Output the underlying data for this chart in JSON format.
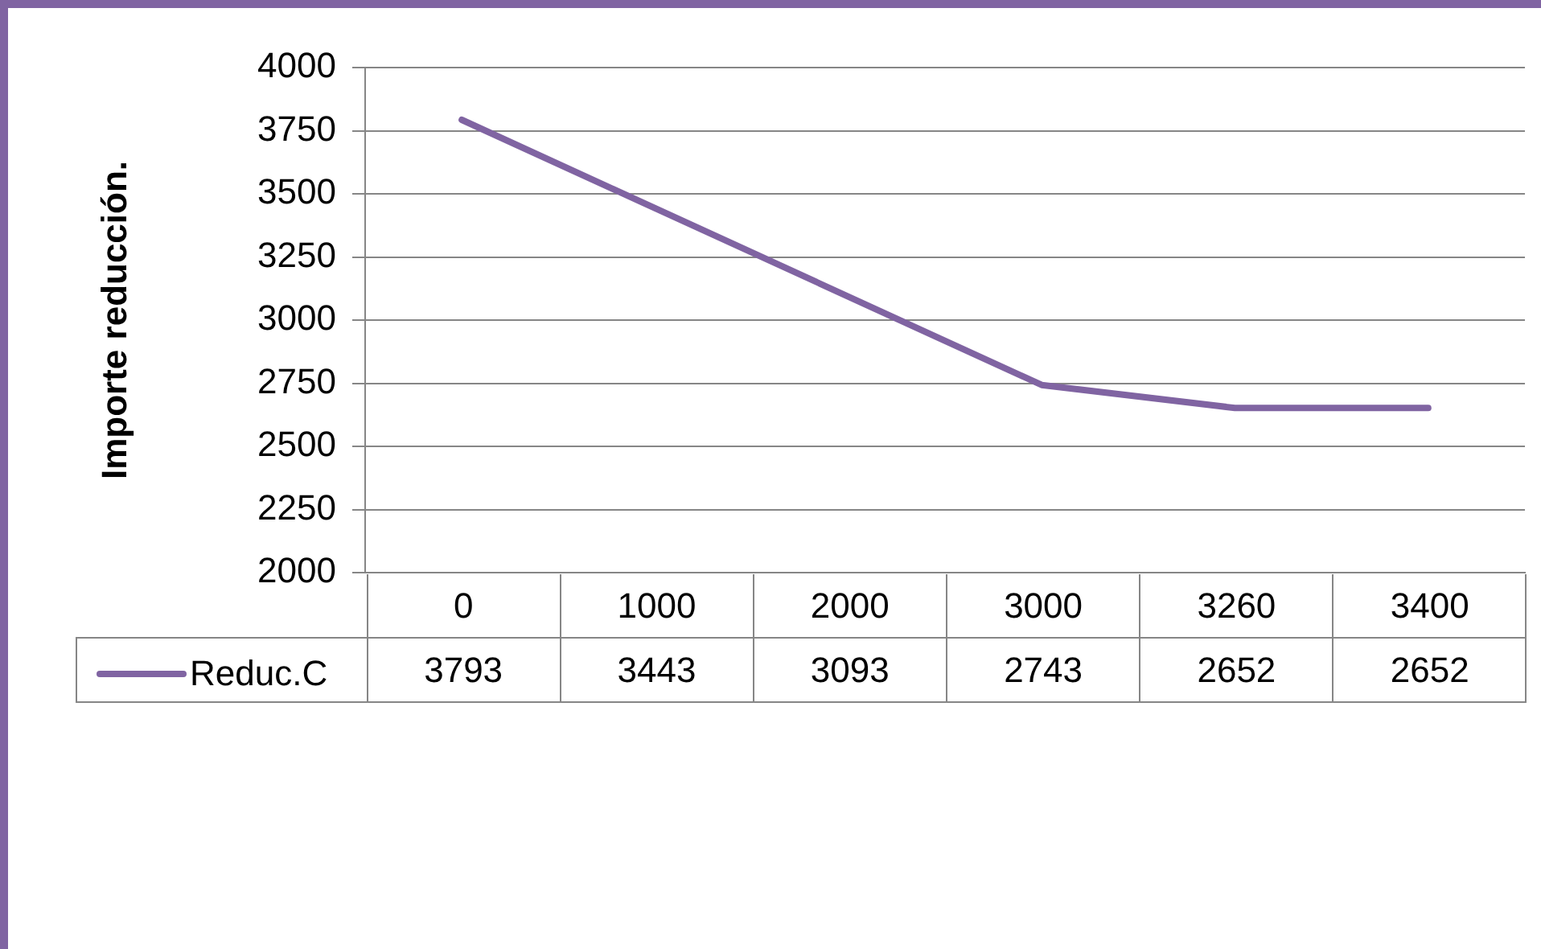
{
  "chart_data": {
    "type": "line",
    "ylabel": "Importe reducción.",
    "categories": [
      "0",
      "1000",
      "2000",
      "3000",
      "3260",
      "3400"
    ],
    "series": [
      {
        "name": "Reduc.C",
        "color": "#8064a2",
        "values": [
          3793,
          3443,
          3093,
          2743,
          2652,
          2652
        ]
      }
    ],
    "ylim": [
      2000,
      4000
    ],
    "yticks": [
      2000,
      2250,
      2500,
      2750,
      3000,
      3250,
      3500,
      3750,
      4000
    ],
    "grid": "y",
    "legend": "bottom",
    "data_labels": true,
    "marker": "none",
    "line_style": "solid"
  }
}
